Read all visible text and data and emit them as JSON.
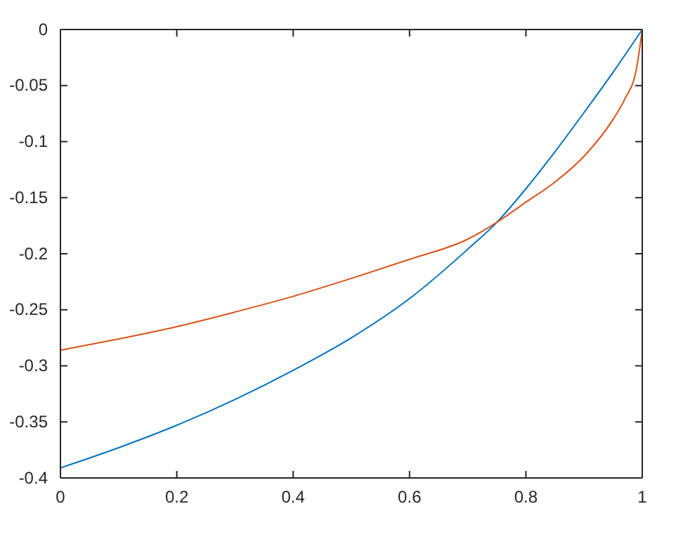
{
  "chart_data": {
    "type": "line",
    "xlim": [
      0,
      1
    ],
    "ylim": [
      -0.4,
      0
    ],
    "xticks": [
      0,
      0.2,
      0.4,
      0.6,
      0.8,
      1
    ],
    "yticks": [
      -0.4,
      -0.35,
      -0.3,
      -0.25,
      -0.2,
      -0.15,
      -0.1,
      -0.05,
      0
    ],
    "grid": false,
    "line_style": "solid",
    "marker": "none",
    "series": [
      {
        "color": "#0072bd",
        "x": [
          0,
          0.1,
          0.2,
          0.3,
          0.4,
          0.5,
          0.6,
          0.7,
          0.75,
          0.8,
          0.85,
          0.9,
          0.95,
          1
        ],
        "values": [
          -0.391,
          -0.373,
          -0.353,
          -0.33,
          -0.304,
          -0.275,
          -0.24,
          -0.196,
          -0.172,
          -0.142,
          -0.109,
          -0.074,
          -0.038,
          0
        ]
      },
      {
        "color": "#d95319",
        "x": [
          0,
          0.1,
          0.2,
          0.3,
          0.4,
          0.5,
          0.6,
          0.7,
          0.75,
          0.8,
          0.85,
          0.9,
          0.95,
          0.97,
          0.99,
          1
        ],
        "values": [
          -0.286,
          -0.276,
          -0.265,
          -0.252,
          -0.238,
          -0.222,
          -0.205,
          -0.187,
          -0.172,
          -0.154,
          -0.136,
          -0.113,
          -0.08,
          -0.062,
          -0.035,
          0
        ]
      }
    ]
  }
}
